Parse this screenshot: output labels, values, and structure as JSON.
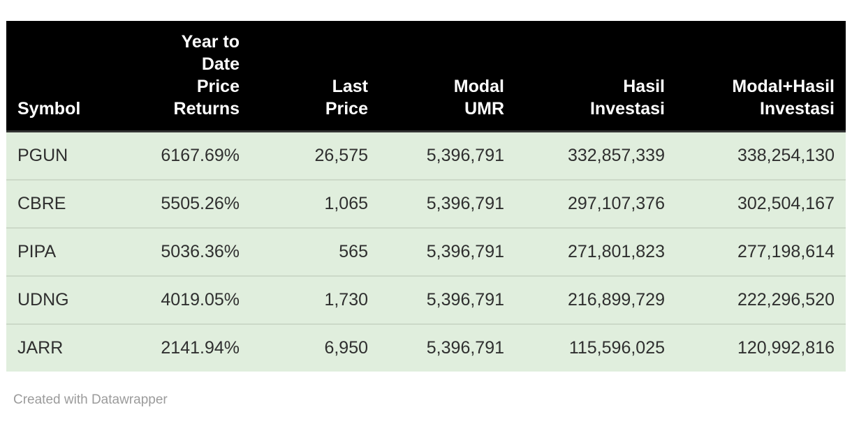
{
  "chart_data": {
    "type": "table",
    "columns": [
      {
        "id": "symbol",
        "label": "Symbol",
        "display": "Symbol",
        "align": "left"
      },
      {
        "id": "ytd_price_returns",
        "label": "Year to Date Price Returns",
        "display": "Year to\nDate\nPrice\nReturns",
        "align": "right"
      },
      {
        "id": "last_price",
        "label": "Last Price",
        "display": "Last\nPrice",
        "align": "right"
      },
      {
        "id": "modal_umr",
        "label": "Modal UMR",
        "display": "Modal\nUMR",
        "align": "right"
      },
      {
        "id": "hasil_investasi",
        "label": "Hasil Investasi",
        "display": "Hasil\nInvestasi",
        "align": "right"
      },
      {
        "id": "modal_hasil_investasi",
        "label": "Modal+Hasil Investasi",
        "display": "Modal+Hasil\nInvestasi",
        "align": "right"
      }
    ],
    "rows": [
      [
        "PGUN",
        "6167.69%",
        "26,575",
        "5,396,791",
        "332,857,339",
        "338,254,130"
      ],
      [
        "CBRE",
        "5505.26%",
        "1,065",
        "5,396,791",
        "297,107,376",
        "302,504,167"
      ],
      [
        "PIPA",
        "5036.36%",
        "565",
        "5,396,791",
        "271,801,823",
        "277,198,614"
      ],
      [
        "UDNG",
        "4019.05%",
        "1,730",
        "5,396,791",
        "216,899,729",
        "222,296,520"
      ],
      [
        "JARR",
        "2141.94%",
        "6,950",
        "5,396,791",
        "115,596,025",
        "120,992,816"
      ]
    ]
  },
  "footer": {
    "credit": "Created with Datawrapper"
  },
  "colors": {
    "header_bg": "#000000",
    "header_text": "#ffffff",
    "header_divider": "#333333",
    "row_bg": "#e0eedd",
    "row_divider": "#ccd9c8",
    "body_text": "#2f2f2f",
    "credit_text": "#9b9b9b"
  }
}
